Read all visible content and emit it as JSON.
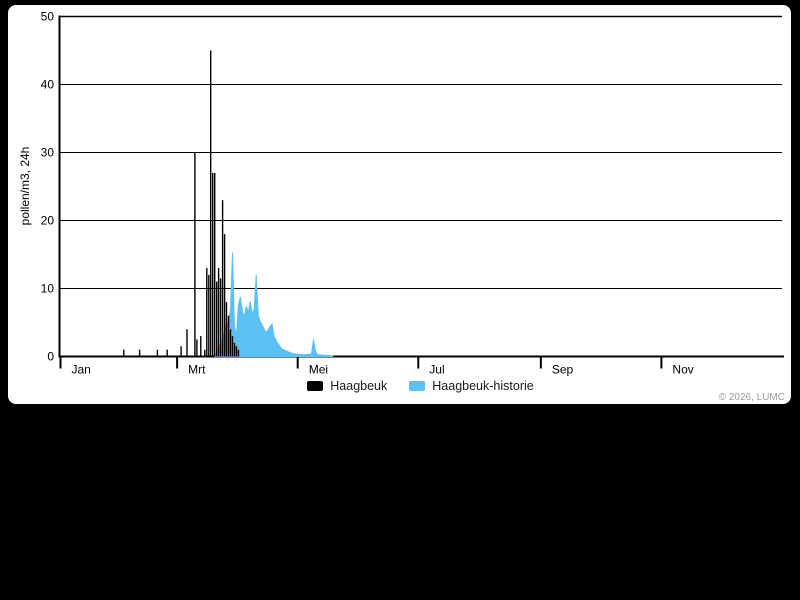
{
  "page": {
    "background_color": "#000000",
    "panel_color": "#ffffff"
  },
  "footer": {
    "copyright": "© 2026, LUMC"
  },
  "chart_data": {
    "type": "bar",
    "title": "",
    "ylabel": "pollen/m3, 24h",
    "xlabel": "",
    "ylim": [
      0,
      50
    ],
    "yticks": [
      0,
      10,
      20,
      30,
      40,
      50
    ],
    "grid": "horizontal",
    "x_axis_unit": "day-of-year",
    "x_range_days": [
      0,
      365
    ],
    "xticks": [
      {
        "label": "Jan",
        "day": 0
      },
      {
        "label": "Mrt",
        "day": 59
      },
      {
        "label": "Mei",
        "day": 120
      },
      {
        "label": "Jul",
        "day": 181
      },
      {
        "label": "Sep",
        "day": 243
      },
      {
        "label": "Nov",
        "day": 304
      }
    ],
    "legend": [
      {
        "label": "Haagbeuk",
        "color": "#000000",
        "type": "bar"
      },
      {
        "label": "Haagbeuk-historie",
        "color": "#5ac1f2",
        "type": "area"
      }
    ],
    "legend_position": "bottom-center",
    "series": [
      {
        "name": "Haagbeuk",
        "type": "bar",
        "color": "#000000",
        "points": [
          [
            32,
            1
          ],
          [
            40,
            1
          ],
          [
            49,
            1
          ],
          [
            54,
            1
          ],
          [
            61,
            1.5
          ],
          [
            64,
            4
          ],
          [
            68,
            30
          ],
          [
            69,
            2.5
          ],
          [
            71,
            3
          ],
          [
            73,
            1
          ],
          [
            74,
            13
          ],
          [
            75,
            12
          ],
          [
            76,
            45
          ],
          [
            77,
            27
          ],
          [
            78,
            27
          ],
          [
            79,
            11
          ],
          [
            80,
            13
          ],
          [
            81,
            11.5
          ],
          [
            82,
            23
          ],
          [
            83,
            18
          ],
          [
            84,
            8
          ],
          [
            85,
            6
          ],
          [
            86,
            4
          ],
          [
            87,
            3
          ],
          [
            88,
            2
          ],
          [
            89,
            1.5
          ],
          [
            90,
            1
          ]
        ]
      },
      {
        "name": "Haagbeuk-historie",
        "type": "area",
        "color": "#5ac1f2",
        "points": [
          [
            78,
            0
          ],
          [
            80,
            1.2
          ],
          [
            82,
            2.6
          ],
          [
            84,
            4.8
          ],
          [
            85,
            5
          ],
          [
            86,
            7
          ],
          [
            87,
            15.3
          ],
          [
            88,
            4.2
          ],
          [
            89,
            3.2
          ],
          [
            90,
            7.5
          ],
          [
            91,
            8.8
          ],
          [
            92,
            6.6
          ],
          [
            93,
            5.8
          ],
          [
            94,
            7.4
          ],
          [
            95,
            6.5
          ],
          [
            96,
            8.1
          ],
          [
            97,
            6.2
          ],
          [
            98,
            7
          ],
          [
            99,
            12
          ],
          [
            100,
            6
          ],
          [
            101,
            5.2
          ],
          [
            102,
            4.7
          ],
          [
            103,
            4
          ],
          [
            104,
            3.6
          ],
          [
            105,
            3.9
          ],
          [
            106,
            4.4
          ],
          [
            107,
            4.8
          ],
          [
            108,
            3
          ],
          [
            109,
            2.4
          ],
          [
            110,
            1.9
          ],
          [
            112,
            1.1
          ],
          [
            115,
            0.7
          ],
          [
            118,
            0.4
          ],
          [
            121,
            0.3
          ],
          [
            124,
            0.25
          ],
          [
            127,
            0.4
          ],
          [
            128,
            2.5
          ],
          [
            129,
            0.8
          ],
          [
            130,
            0.3
          ],
          [
            133,
            0.2
          ],
          [
            136,
            0.15
          ],
          [
            138,
            0
          ]
        ]
      }
    ]
  }
}
